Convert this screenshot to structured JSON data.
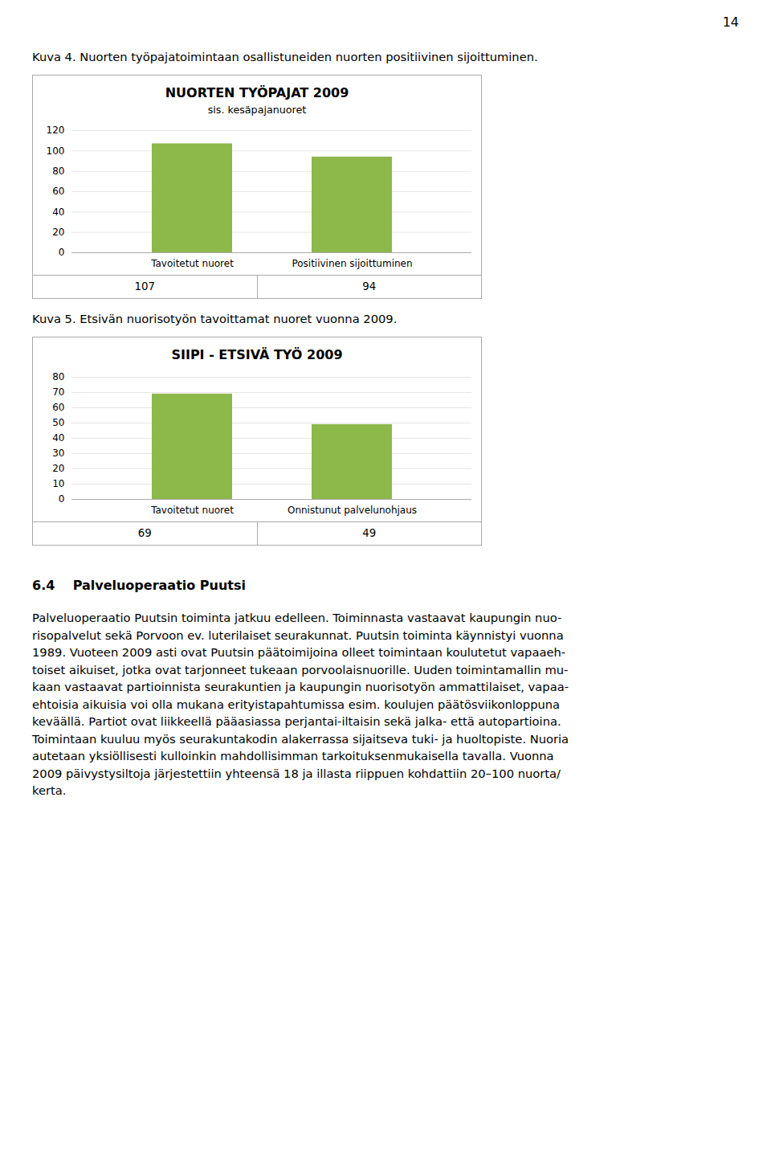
{
  "page_number": "14",
  "section_heading": "6.4    Palveluoperaatio Puutsi",
  "body_lines": [
    "Palveluoperaatio Puutsin toiminta jatkuu edelleen. Toiminnasta vastaavat kaupungin nuo-",
    "risopalvelut sekä Porvoon ev. luterilaiset seurakunnat. Puutsin toiminta käynnistyi vuonna",
    "1989. Vuoteen 2009 asti ovat Puutsin päätoimijoina olleet toimintaan koulutetut vapaaeh-",
    "toiset aikuiset, jotka ovat tarjonneet tukeaan porvoolaisnuorille. Uuden toimintamallin mu-",
    "kaan vastaavat partioinnista seurakuntien ja kaupungin nuorisotyön ammattilaiset, vapaa-",
    "ehtoisia aikuisia voi olla mukana erityistapahtumissa esim. koulujen päätösviikonloppuna",
    "keväällä. Partiot ovat liikkeellä pääasiassa perjantai-iltaisin sekä jalka- että autopartioina.",
    "Toimintaan kuuluu myös seurakuntakodin alakerrassa sijaitseva tuki- ja huoltopiste. Nuoria",
    "autetaan yksiöllisesti kulloinkin mahdollisimman tarkoituksenmukaisella tavalla. Vuonna",
    "2009 päivystysiltoja järjestettiin yhteensä 18 ja illasta riippuen kohdattiin 20–100 nuorta/",
    "kerta."
  ],
  "chart_data": [
    {
      "type": "bar",
      "caption": "Kuva 4. Nuorten työpajatoimintaan osallistuneiden nuorten positiivinen sijoittuminen.",
      "title": "NUORTEN TYÖPAJAT 2009",
      "subtitle": "sis. kesäpajanuoret",
      "categories": [
        "Tavoitetut nuoret",
        "Positiivinen sijoittuminen"
      ],
      "values": [
        107,
        94
      ],
      "color": "#8db84a",
      "ylim": [
        0,
        120
      ],
      "yticks": [
        0,
        20,
        40,
        60,
        80,
        100,
        120
      ],
      "grid": true,
      "data_labels": true
    },
    {
      "type": "bar",
      "caption": "Kuva 5. Etsivän nuorisotyön tavoittamat nuoret vuonna 2009.",
      "title": "SIIPI - ETSIVÄ TYÖ 2009",
      "categories": [
        "Tavoitetut nuoret",
        "Onnistunut palvelunohjaus"
      ],
      "values": [
        69,
        49
      ],
      "color": "#8db84a",
      "ylim": [
        0,
        80
      ],
      "yticks": [
        0,
        10,
        20,
        30,
        40,
        50,
        60,
        70,
        80
      ],
      "grid": true,
      "data_labels": true
    }
  ]
}
